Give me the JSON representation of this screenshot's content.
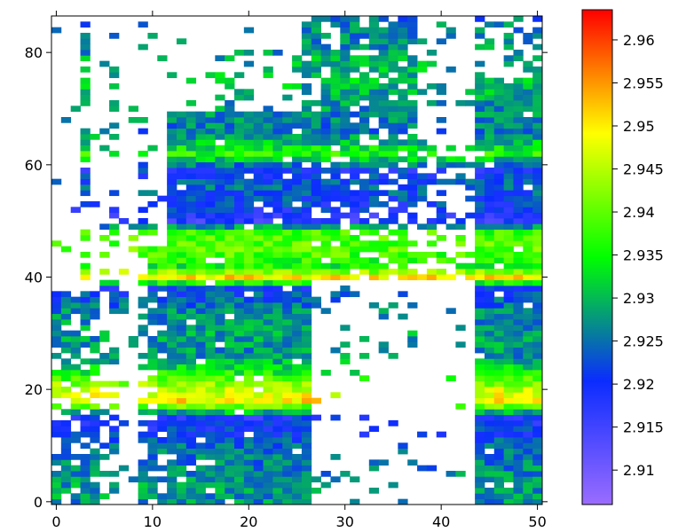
{
  "chart_data": {
    "type": "heatmap",
    "title": "",
    "xlabel": "",
    "ylabel": "",
    "xlim": [
      -0.5,
      50.5
    ],
    "ylim": [
      -0.5,
      86.5
    ],
    "x_ticks": [
      0,
      10,
      20,
      30,
      40,
      50
    ],
    "x_tick_labels": [
      "0",
      "10",
      "20",
      "30",
      "40",
      "50"
    ],
    "y_ticks": [
      0,
      20,
      40,
      60,
      80
    ],
    "y_tick_labels": [
      "0",
      "20",
      "40",
      "60",
      "80"
    ],
    "colorbar": {
      "min": 2.906,
      "max": 2.9635,
      "ticks": [
        2.91,
        2.915,
        2.92,
        2.925,
        2.93,
        2.935,
        2.94,
        2.945,
        2.95,
        2.955,
        2.96
      ],
      "tick_labels": [
        "2.91",
        "2.915",
        "2.92",
        "2.925",
        "2.93",
        "2.935",
        "2.94",
        "2.945",
        "2.95",
        "2.955",
        "2.96"
      ],
      "colors": [
        "#9b6cff",
        "#0b2cff",
        "#00ff00",
        "#ffff00",
        "#ff0000"
      ]
    },
    "row_profile": {
      "y": [
        0,
        3,
        6,
        9,
        12,
        15,
        18,
        20,
        23,
        26,
        30,
        34,
        38,
        40,
        42,
        45,
        48,
        50,
        53,
        56,
        59,
        62,
        66,
        70,
        75,
        80,
        86
      ],
      "value": [
        2.927,
        2.928,
        2.926,
        2.925,
        2.921,
        2.919,
        2.95,
        2.946,
        2.935,
        2.927,
        2.928,
        2.926,
        2.921,
        2.95,
        2.935,
        2.94,
        2.938,
        2.917,
        2.921,
        2.924,
        2.92,
        2.936,
        2.925,
        2.927,
        2.93,
        2.928,
        2.925
      ]
    },
    "column_bands": [
      {
        "x": [
          0,
          4
        ],
        "y": [
          0,
          37
        ],
        "fill": 0.75
      },
      {
        "x": [
          5,
          6
        ],
        "y": [
          0,
          34
        ],
        "fill": 0.4
      },
      {
        "x": [
          5,
          8
        ],
        "y": [
          34,
          50
        ],
        "fill": 0.3
      },
      {
        "x": [
          3,
          3
        ],
        "y": [
          0,
          86
        ],
        "fill": 0.55
      },
      {
        "x": [
          6,
          6
        ],
        "y": [
          0,
          86
        ],
        "fill": 0.3
      },
      {
        "x": [
          9,
          9
        ],
        "y": [
          0,
          70
        ],
        "fill": 0.5
      },
      {
        "x": [
          10,
          11
        ],
        "y": [
          0,
          45
        ],
        "fill": 0.85
      },
      {
        "x": [
          12,
          26
        ],
        "y": [
          0,
          69
        ],
        "fill": 0.97
      },
      {
        "x": [
          16,
          26
        ],
        "y": [
          69,
          80
        ],
        "fill": 0.3
      },
      {
        "x": [
          26,
          37
        ],
        "y": [
          40,
          86
        ],
        "fill": 0.8
      },
      {
        "x": [
          26,
          37
        ],
        "y": [
          0,
          40
        ],
        "fill": 0.12
      },
      {
        "x": [
          37,
          44
        ],
        "y": [
          40,
          62
        ],
        "fill": 0.45
      },
      {
        "x": [
          37,
          44
        ],
        "y": [
          62,
          86
        ],
        "fill": 0.25
      },
      {
        "x": [
          44,
          50
        ],
        "y": [
          0,
          75
        ],
        "fill": 0.97
      },
      {
        "x": [
          44,
          50
        ],
        "y": [
          75,
          86
        ],
        "fill": 0.35
      }
    ]
  }
}
